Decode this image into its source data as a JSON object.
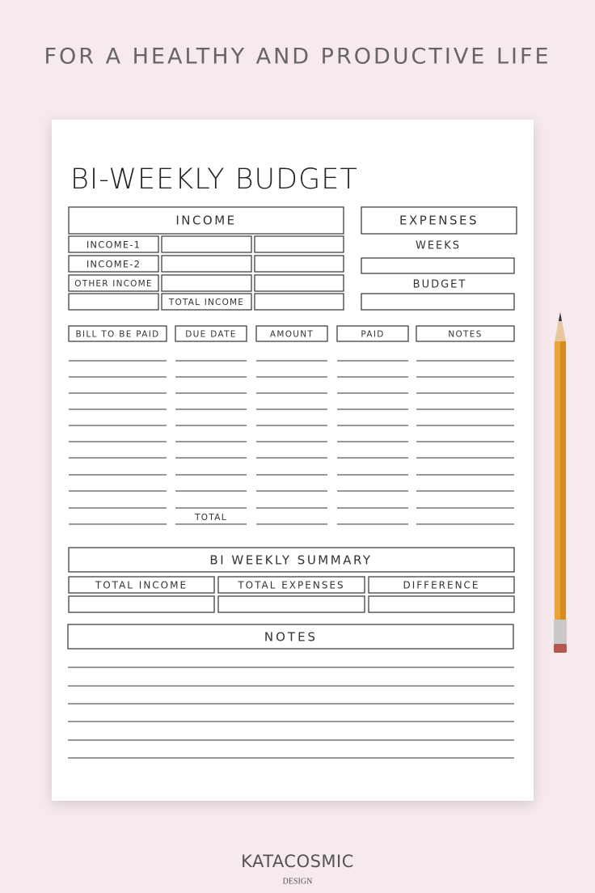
{
  "header": {
    "tagline": "FOR A HEALTHY AND PRODUCTIVE LIFE"
  },
  "sheet": {
    "title": "BI-WEEKLY BUDGET",
    "income": {
      "heading": "INCOME",
      "rows": [
        "INCOME-1",
        "INCOME-2",
        "OTHER INCOME"
      ],
      "total_label": "TOTAL INCOME"
    },
    "expenses": {
      "heading": "EXPENSES",
      "weeks_label": "WEEKS",
      "budget_label": "BUDGET"
    },
    "bills": {
      "columns": [
        "BILL TO BE PAID",
        "DUE DATE",
        "AMOUNT",
        "PAID",
        "NOTES"
      ],
      "total_label": "TOTAL"
    },
    "summary": {
      "heading": "BI WEEKLY SUMMARY",
      "columns": [
        "TOTAL INCOME",
        "TOTAL EXPENSES",
        "DIFFERENCE"
      ]
    },
    "notes": {
      "heading": "NOTES"
    }
  },
  "footer": {
    "brand": "KATACOSMIC",
    "sub": "DESIGN"
  }
}
